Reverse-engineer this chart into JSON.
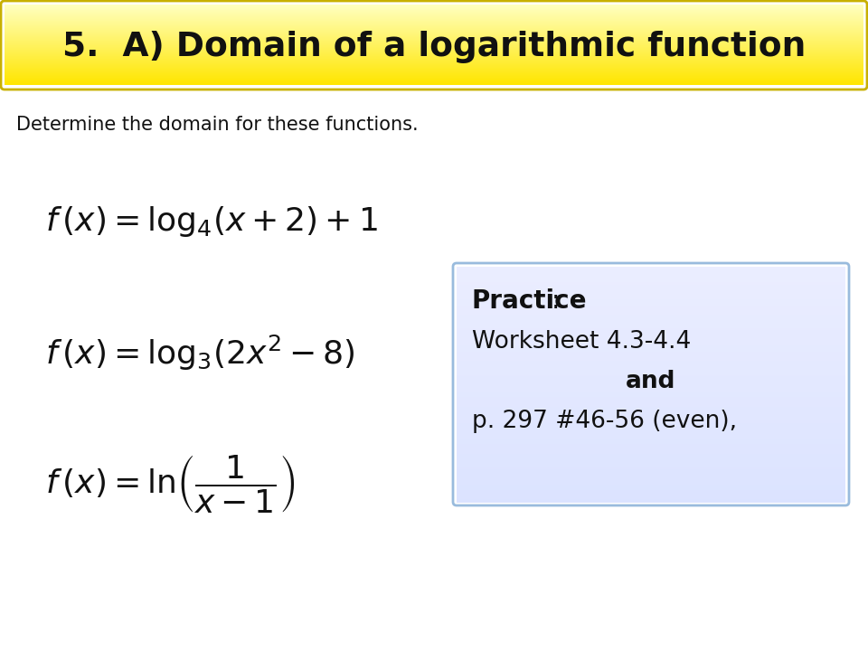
{
  "title": "5.  A) Domain of a logarithmic function",
  "subtitle": "Determine the domain for these functions.",
  "formula1": "$f\\,(x) = \\log_{4}\\!\\left(x + 2\\right)+1$",
  "formula2": "$f\\,(x) = \\log_{3}\\!\\left(2x^{2} - 8\\right)$",
  "formula3": "$f\\,(x) = \\ln\\!\\left(\\dfrac{1}{x-1}\\right)$",
  "practice_line1_bold": "Practice",
  "practice_line2": "Worksheet 4.3-4.4",
  "practice_line3": "and",
  "practice_line4": "p. 297 #46-56 (even),",
  "bg_color": "#ffffff",
  "title_text_color": "#111111",
  "formula_color": "#111111",
  "subtitle_color": "#111111",
  "title_box_color1": "#ffffa0",
  "title_box_color2": "#ffe000",
  "title_box_border": "#c8b000",
  "practice_box_fill": "#ddeeff",
  "practice_box_border": "#99bbdd"
}
